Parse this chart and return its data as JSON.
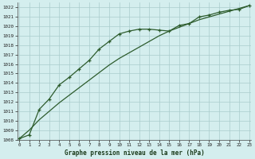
{
  "title": "Graphe pression niveau de la mer (hPa)",
  "background_color": "#d4eeee",
  "grid_color": "#aacccc",
  "line_color": "#2d5c2d",
  "xlim": [
    -0.2,
    23.2
  ],
  "ylim": [
    1008,
    1022.5
  ],
  "xticks": [
    0,
    1,
    2,
    3,
    4,
    5,
    6,
    7,
    8,
    9,
    10,
    11,
    12,
    13,
    14,
    15,
    16,
    17,
    18,
    19,
    20,
    21,
    22,
    23
  ],
  "yticks": [
    1008,
    1009,
    1010,
    1011,
    1012,
    1013,
    1014,
    1015,
    1016,
    1017,
    1018,
    1019,
    1020,
    1021,
    1022
  ],
  "series1_x": [
    0,
    1,
    2,
    3,
    4,
    5,
    6,
    7,
    8,
    9,
    10,
    11,
    12,
    13,
    14,
    15,
    16,
    17,
    18,
    19,
    20,
    21,
    22,
    23
  ],
  "series1_y": [
    1008.1,
    1008.5,
    1011.2,
    1012.3,
    1013.8,
    1014.6,
    1015.5,
    1016.4,
    1017.6,
    1018.4,
    1019.2,
    1019.5,
    1019.7,
    1019.7,
    1019.6,
    1019.5,
    1020.1,
    1020.3,
    1021.0,
    1021.2,
    1021.5,
    1021.7,
    1021.8,
    1022.2
  ],
  "series2_x": [
    0,
    1,
    2,
    3,
    4,
    5,
    6,
    7,
    8,
    9,
    10,
    11,
    12,
    13,
    14,
    15,
    16,
    17,
    18,
    19,
    20,
    21,
    22,
    23
  ],
  "series2_y": [
    1008.1,
    1009.0,
    1010.1,
    1011.0,
    1011.9,
    1012.7,
    1013.5,
    1014.3,
    1015.1,
    1015.9,
    1016.6,
    1017.2,
    1017.8,
    1018.4,
    1019.0,
    1019.5,
    1019.9,
    1020.3,
    1020.7,
    1021.0,
    1021.3,
    1021.6,
    1021.9,
    1022.2
  ]
}
